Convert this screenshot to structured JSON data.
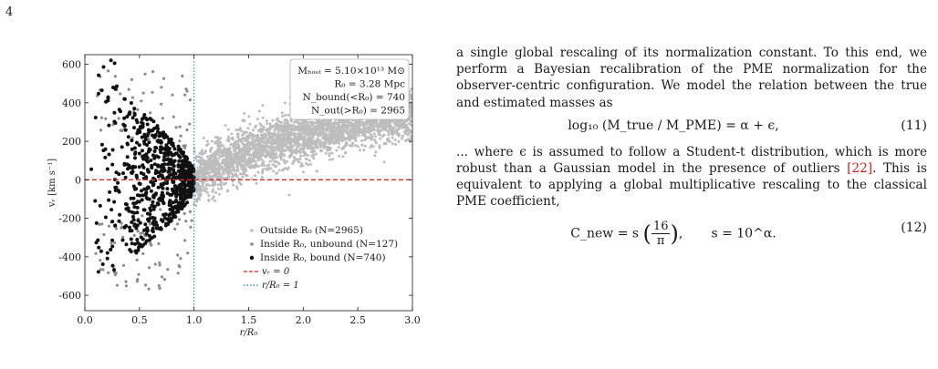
{
  "page": {
    "number": "4"
  },
  "chart_data": {
    "type": "scatter",
    "xlabel": "r/R₀",
    "ylabel": "vᵣ [km s⁻¹]",
    "xlim": [
      0.0,
      3.0
    ],
    "ylim": [
      -680,
      650
    ],
    "x_ticks": [
      "0.0",
      "0.5",
      "1.0",
      "1.5",
      "2.0",
      "2.5",
      "3.0"
    ],
    "x_tick_values": [
      0.0,
      0.5,
      1.0,
      1.5,
      2.0,
      2.5,
      3.0
    ],
    "y_ticks": [
      "600",
      "400",
      "200",
      "0",
      "-200",
      "-400",
      "-600"
    ],
    "y_tick_values": [
      600,
      400,
      200,
      0,
      -200,
      -400,
      -600
    ],
    "grid": false,
    "legend_position": "bottom-right",
    "annotation": {
      "position": "top-right",
      "lines": [
        "Mₕₒₛₜ = 5.10×10¹³ M⊙",
        "R₀ = 3.28 Mpc",
        "N_bound(<R₀) = 740",
        "N_out(>R₀) = 2965"
      ]
    },
    "series": [
      {
        "name": "Outside R₀ (N=2965)",
        "color": "#bdbdbd",
        "marker": "dot",
        "count": 2965,
        "x_range": [
          1.0,
          3.0
        ],
        "trend_x": [
          1.0,
          1.5,
          2.0,
          2.5,
          3.0
        ],
        "trend_y": [
          20,
          150,
          230,
          290,
          340
        ]
      },
      {
        "name": "Inside R₀, unbound (N=127)",
        "color": "#8c8c8c",
        "marker": "dot",
        "count": 127,
        "x_range": [
          0.0,
          1.0
        ]
      },
      {
        "name": "Inside R₀, bound (N=740)",
        "color": "#111111",
        "marker": "dot",
        "count": 740,
        "x_range": [
          0.0,
          1.0
        ]
      }
    ],
    "reference_lines": [
      {
        "name": "vᵣ = 0",
        "orientation": "horizontal",
        "value": 0,
        "color": "#d62728",
        "style": "dashed"
      },
      {
        "name": "r/R₀ = 1",
        "orientation": "vertical",
        "value": 1.0,
        "color": "#1f77b4",
        "style": "dotted"
      }
    ]
  },
  "text": {
    "p1": "a single global rescaling of its normalization constant. To this end, we perform a Bayesian recalibration of the PME normalization for the observer-centric configuration. We model the relation between the true and estimated masses as",
    "eq11_tex": "log₁₀ (M_true / M_PME) = α + ϵ,",
    "eq11_num": "(11)",
    "p2_a": "... where ϵ is assumed to follow a Student-t distribution, which is more robust than a Gaussian model in the presence of outliers ",
    "p2_cite": "[22]",
    "p2_b": ". This is equivalent to applying a global multiplicative rescaling to the classical PME coefficient,",
    "eq12_lhs": "C_new = s",
    "eq12_frac_num": "16",
    "eq12_frac_den": "π",
    "eq12_rhs": "s = 10^α.",
    "eq12_num": "(12)"
  }
}
